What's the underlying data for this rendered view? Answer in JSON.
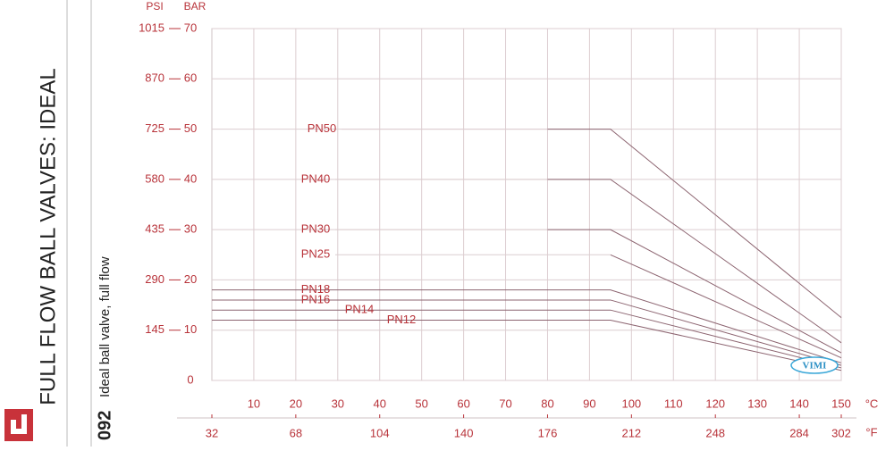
{
  "sidebar": {
    "title": "FULL FLOW BALL VALVES: IDEAL",
    "page_number": "092",
    "subtitle": "Ideal ball valve, full flow"
  },
  "chart_data": {
    "type": "line",
    "ylabel": "BAR",
    "y2label": "PSI",
    "xlabel": "°C",
    "x2label": "°F",
    "logo": "VIMI",
    "xlim": [
      0,
      150
    ],
    "xticks": [
      10,
      20,
      30,
      40,
      50,
      60,
      70,
      80,
      90,
      100,
      110,
      120,
      130,
      140,
      150
    ],
    "x2lim": [
      32,
      302
    ],
    "x2ticks": [
      32,
      68,
      104,
      140,
      176,
      212,
      248,
      284,
      302
    ],
    "ylim": [
      0,
      70
    ],
    "yticks": [
      0,
      10,
      20,
      30,
      40,
      50,
      60,
      70
    ],
    "y2lim": [
      0,
      1015
    ],
    "y2ticks": [
      145,
      290,
      435,
      580,
      725,
      870,
      1015
    ],
    "grid": true,
    "series": [
      {
        "name": "PN50",
        "color": "#8c6470",
        "x": [
          80,
          95,
          150
        ],
        "values": [
          50,
          50,
          12.5
        ]
      },
      {
        "name": "PN40",
        "color": "#8c6470",
        "x": [
          80,
          95,
          150
        ],
        "values": [
          40,
          40,
          7.5
        ]
      },
      {
        "name": "PN30",
        "color": "#8c6470",
        "x": [
          80,
          95,
          150
        ],
        "values": [
          30,
          30,
          5.5
        ]
      },
      {
        "name": "PN25",
        "color": "#8c6470",
        "x": [
          95,
          150
        ],
        "values": [
          25,
          4.5
        ]
      },
      {
        "name": "PN18",
        "color": "#8c6470",
        "x": [
          0,
          95,
          150
        ],
        "values": [
          18,
          18,
          3.5
        ]
      },
      {
        "name": "PN16",
        "color": "#8c6470",
        "x": [
          0,
          95,
          150
        ],
        "values": [
          16,
          16,
          3
        ]
      },
      {
        "name": "PN14",
        "color": "#8c6470",
        "x": [
          0,
          95,
          150
        ],
        "values": [
          14,
          14,
          2.5
        ]
      },
      {
        "name": "PN12",
        "color": "#8c6470",
        "x": [
          0,
          95,
          150
        ],
        "values": [
          12,
          12,
          2
        ]
      }
    ]
  }
}
